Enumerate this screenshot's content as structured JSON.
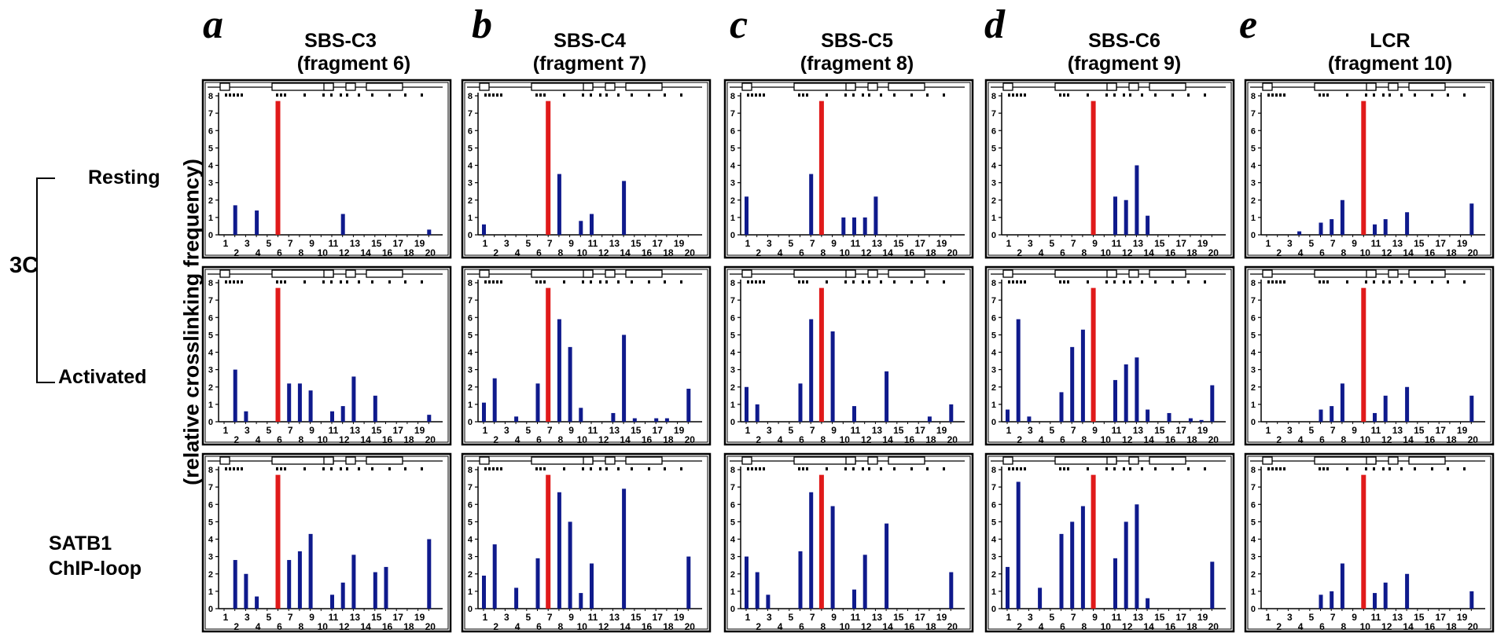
{
  "columns": [
    {
      "letter": "a",
      "title": "SBS-C3",
      "subtitle": "(fragment 6)"
    },
    {
      "letter": "b",
      "title": "SBS-C4",
      "subtitle": "(fragment 7)"
    },
    {
      "letter": "c",
      "title": "SBS-C5",
      "subtitle": "(fragment 8)"
    },
    {
      "letter": "d",
      "title": "SBS-C6",
      "subtitle": "(fragment 9)"
    },
    {
      "letter": "e",
      "title": "LCR",
      "subtitle": "(fragment 10)"
    }
  ],
  "rows": {
    "resting": "Resting",
    "activated": "Activated",
    "group": "3C",
    "satb1_line1": "SATB1",
    "satb1_line2": "ChIP-loop"
  },
  "y_axis_label": "(relative crosslinking frequency)",
  "colors": {
    "data_bar": "#0f1a8c",
    "anchor_bar": "#e01a1a",
    "frame": "#000000"
  },
  "chart_data": {
    "type": "bar",
    "ylim": [
      0,
      8
    ],
    "yticks": [
      "0",
      "1",
      "2",
      "3",
      "4",
      "5",
      "6",
      "7",
      "8"
    ],
    "fragments": [
      1,
      2,
      3,
      4,
      5,
      6,
      7,
      8,
      9,
      10,
      11,
      12,
      13,
      14,
      15,
      16,
      17,
      18,
      19,
      20
    ],
    "x_tick_labels_top": [
      "1",
      "3",
      "5",
      "7",
      "9",
      "11",
      "13",
      "15",
      "17",
      "19"
    ],
    "x_tick_labels_bottom": [
      "2",
      "4",
      "6",
      "8",
      "10",
      "12",
      "14",
      "16",
      "18",
      "20"
    ],
    "anchor_value": 7.7,
    "panels": [
      {
        "column": "SBS-C3",
        "row": "Resting",
        "anchor": 6,
        "values": {
          "2": 1.7,
          "4": 1.4,
          "12": 1.2,
          "20": 0.3
        }
      },
      {
        "column": "SBS-C3",
        "row": "Activated",
        "anchor": 6,
        "values": {
          "2": 3.0,
          "3": 0.6,
          "7": 2.2,
          "8": 2.2,
          "9": 1.8,
          "11": 0.6,
          "12": 0.9,
          "13": 2.6,
          "15": 1.5,
          "20": 0.4
        }
      },
      {
        "column": "SBS-C3",
        "row": "SATB1 ChIP-loop",
        "anchor": 6,
        "values": {
          "2": 2.8,
          "3": 2.0,
          "4": 0.7,
          "7": 2.8,
          "8": 3.3,
          "9": 4.3,
          "11": 0.8,
          "12": 1.5,
          "13": 3.1,
          "15": 2.1,
          "16": 2.4,
          "20": 4.0
        }
      },
      {
        "column": "SBS-C4",
        "row": "Resting",
        "anchor": 7,
        "values": {
          "1": 0.6,
          "8": 3.5,
          "10": 0.8,
          "11": 1.2,
          "14": 3.1
        }
      },
      {
        "column": "SBS-C4",
        "row": "Activated",
        "anchor": 7,
        "values": {
          "1": 1.1,
          "2": 2.5,
          "4": 0.3,
          "6": 2.2,
          "8": 5.9,
          "9": 4.3,
          "10": 0.8,
          "13": 0.5,
          "14": 5.0,
          "15": 0.2,
          "17": 0.2,
          "18": 0.2,
          "20": 1.9
        }
      },
      {
        "column": "SBS-C4",
        "row": "SATB1 ChIP-loop",
        "anchor": 7,
        "values": {
          "1": 1.9,
          "2": 3.7,
          "4": 1.2,
          "6": 2.9,
          "8": 6.7,
          "9": 5.0,
          "10": 0.9,
          "11": 2.6,
          "14": 6.9,
          "20": 3.0
        }
      },
      {
        "column": "SBS-C5",
        "row": "Resting",
        "anchor": 8,
        "values": {
          "1": 2.2,
          "7": 3.5,
          "10": 1.0,
          "11": 1.0,
          "12": 1.0,
          "13": 2.2
        }
      },
      {
        "column": "SBS-C5",
        "row": "Activated",
        "anchor": 8,
        "values": {
          "1": 2.0,
          "2": 1.0,
          "6": 2.2,
          "7": 5.9,
          "9": 5.2,
          "11": 0.9,
          "14": 2.9,
          "18": 0.3,
          "20": 1.0
        }
      },
      {
        "column": "SBS-C5",
        "row": "SATB1 ChIP-loop",
        "anchor": 8,
        "values": {
          "1": 3.0,
          "2": 2.1,
          "3": 0.8,
          "6": 3.3,
          "7": 6.7,
          "9": 5.9,
          "11": 1.1,
          "12": 3.1,
          "14": 4.9,
          "20": 2.1
        }
      },
      {
        "column": "SBS-C6",
        "row": "Resting",
        "anchor": 9,
        "values": {
          "11": 2.2,
          "12": 2.0,
          "13": 4.0,
          "14": 1.1
        }
      },
      {
        "column": "SBS-C6",
        "row": "Activated",
        "anchor": 9,
        "values": {
          "1": 0.7,
          "2": 5.9,
          "3": 0.3,
          "6": 1.7,
          "7": 4.3,
          "8": 5.3,
          "11": 2.4,
          "12": 3.3,
          "13": 3.7,
          "14": 0.7,
          "16": 0.5,
          "18": 0.2,
          "19": 0.1,
          "20": 2.1
        }
      },
      {
        "column": "SBS-C6",
        "row": "SATB1 ChIP-loop",
        "anchor": 9,
        "values": {
          "1": 2.4,
          "2": 7.3,
          "4": 1.2,
          "6": 4.3,
          "7": 5.0,
          "8": 5.9,
          "11": 2.9,
          "12": 5.0,
          "13": 6.0,
          "14": 0.6,
          "20": 2.7
        }
      },
      {
        "column": "LCR",
        "row": "Resting",
        "anchor": 10,
        "values": {
          "4": 0.2,
          "6": 0.7,
          "7": 0.9,
          "8": 2.0,
          "11": 0.6,
          "12": 0.9,
          "14": 1.3,
          "20": 1.8
        }
      },
      {
        "column": "LCR",
        "row": "Activated",
        "anchor": 10,
        "values": {
          "6": 0.7,
          "7": 0.9,
          "8": 2.2,
          "11": 0.5,
          "12": 1.5,
          "14": 2.0,
          "20": 1.5
        }
      },
      {
        "column": "LCR",
        "row": "SATB1 ChIP-loop",
        "anchor": 10,
        "values": {
          "6": 0.8,
          "7": 1.0,
          "8": 2.6,
          "11": 0.9,
          "12": 1.5,
          "14": 2.0,
          "20": 1.0
        }
      }
    ]
  }
}
